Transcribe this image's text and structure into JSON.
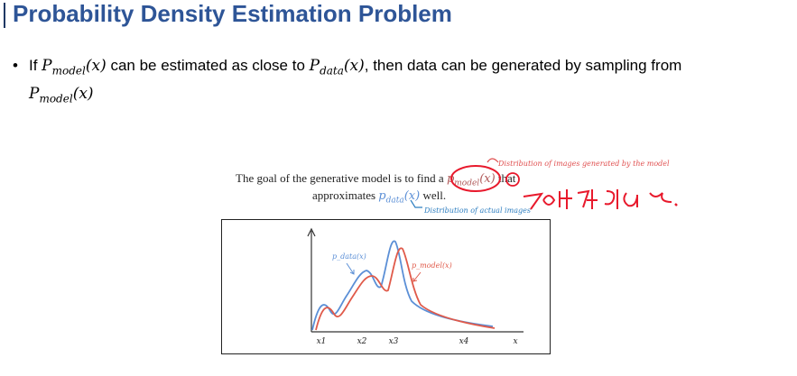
{
  "slide": {
    "title": "Probability Density Estimation Problem",
    "bullet": {
      "part1": "If ",
      "p_model": "P",
      "p_model_sub": "model",
      "arg1": "(x)",
      "part2": " can be estimated as close to ",
      "p_data": "P",
      "p_data_sub": "data",
      "arg2": "(x)",
      "part3": ", then data can be generated by sampling from",
      "p_model2": "P",
      "p_model2_sub": "model",
      "arg3": "(x)"
    }
  },
  "figure": {
    "goal_line1_a": "The goal of the generative model is to find a",
    "goal_line1_pmodel": "p",
    "goal_line1_pmodel_sub": "model",
    "goal_line1_arg": "(x)",
    "goal_line1_b": "that",
    "goal_line2_a": "approximates",
    "goal_line2_pdata": "p",
    "goal_line2_pdata_sub": "data",
    "goal_line2_arg": "(x)",
    "goal_line2_b": "well.",
    "note_model": "Distribution of images generated by the model",
    "note_data": "Distribution of actual images",
    "colors": {
      "data": "#5b8fd6",
      "model": "#e05a4a",
      "annotation": "#e8192c"
    }
  },
  "chart_data": {
    "type": "line",
    "series": [
      {
        "name": "p_data(x)",
        "color": "#5b8fd6"
      },
      {
        "name": "p_model(x)",
        "color": "#e05a4a"
      }
    ],
    "tick_labels": [
      "x1",
      "x2",
      "x3",
      "x4",
      "x"
    ],
    "legend": {
      "data": "p_data(x)",
      "model": "p_model(x)"
    },
    "grid": false
  }
}
